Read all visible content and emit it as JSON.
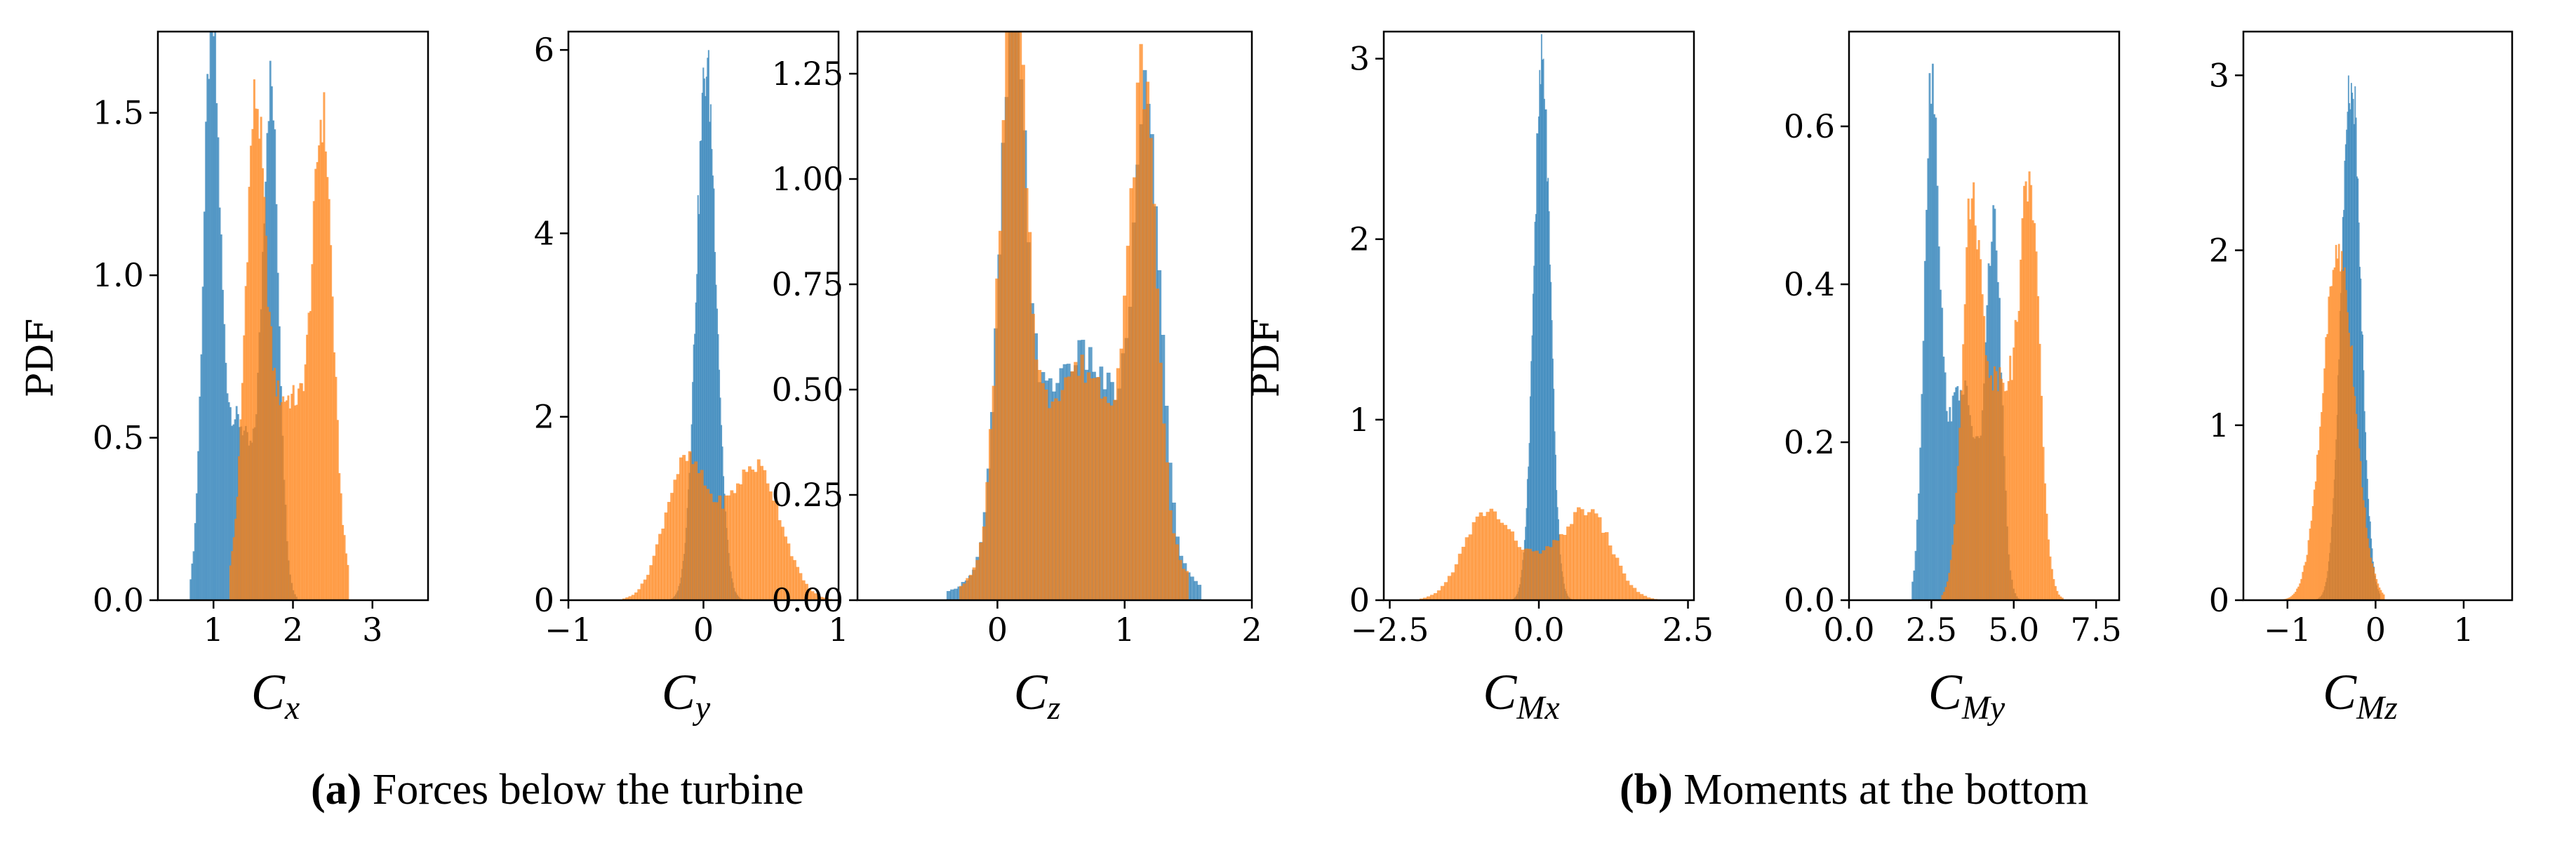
{
  "colors": {
    "blue": "#1f77b4",
    "orange": "#ff7f0e"
  },
  "captions": [
    {
      "tag": "(a)",
      "text": "Forces below the turbine"
    },
    {
      "tag": "(b)",
      "text": "Moments at the bottom"
    }
  ],
  "chart_data": [
    {
      "type": "histogram",
      "xlabel_main": "C",
      "xlabel_sub": "x",
      "ylabel": "PDF",
      "xlim": [
        0.3,
        3.7
      ],
      "ylim": [
        0,
        1.75
      ],
      "xticks": [
        1,
        2,
        3
      ],
      "xtick_labels": [
        "1",
        "2",
        "3"
      ],
      "yticks": [
        0,
        0.5,
        1,
        1.5
      ],
      "ytick_labels": [
        "0.0",
        "0.5",
        "1.0",
        "1.5"
      ],
      "series": [
        {
          "color": "blue",
          "peaks": [
            [
              0.97,
              0.1,
              1.6
            ],
            [
              1.72,
              0.1,
              1.5
            ],
            [
              1.3,
              0.22,
              0.55
            ]
          ],
          "range": [
            0.7,
            2.05
          ]
        },
        {
          "color": "orange",
          "peaks": [
            [
              1.52,
              0.12,
              1.25
            ],
            [
              2.38,
              0.12,
              1.2
            ],
            [
              1.95,
              0.35,
              0.62
            ]
          ],
          "range": [
            1.2,
            2.7
          ]
        }
      ]
    },
    {
      "type": "histogram",
      "xlabel_main": "C",
      "xlabel_sub": "y",
      "ylabel": "",
      "xlim": [
        -1,
        1
      ],
      "ylim": [
        0,
        6.2
      ],
      "xticks": [
        -1,
        0,
        1
      ],
      "xtick_labels": [
        "−1",
        "0",
        "1"
      ],
      "yticks": [
        0,
        2,
        4,
        6
      ],
      "ytick_labels": [
        "0",
        "2",
        "4",
        "6"
      ],
      "series": [
        {
          "color": "blue",
          "peaks": [
            [
              0.02,
              0.075,
              5.8
            ]
          ],
          "range": [
            -0.25,
            0.3
          ]
        },
        {
          "color": "orange",
          "peaks": [
            [
              -0.15,
              0.15,
              1.3
            ],
            [
              0.42,
              0.17,
              1.25
            ],
            [
              0.13,
              0.2,
              0.55
            ]
          ],
          "range": [
            -0.6,
            0.95
          ]
        }
      ]
    },
    {
      "type": "histogram",
      "xlabel_main": "C",
      "xlabel_sub": "z",
      "ylabel": "",
      "xlim": [
        -1.1,
        2
      ],
      "ylim": [
        0,
        1.35
      ],
      "xticks": [
        0,
        1,
        2
      ],
      "xtick_labels": [
        "0",
        "1",
        "2"
      ],
      "yticks": [
        0,
        0.25,
        0.5,
        0.75,
        1,
        1.25
      ],
      "ytick_labels": [
        "0.00",
        "0.25",
        "0.50",
        "0.75",
        "1.00",
        "1.25"
      ],
      "series": [
        {
          "color": "blue",
          "peaks": [
            [
              0.12,
              0.1,
              1.15
            ],
            [
              1.18,
              0.1,
              0.95
            ],
            [
              0.65,
              0.4,
              0.58
            ]
          ],
          "range": [
            -0.4,
            1.6
          ]
        },
        {
          "color": "orange",
          "peaks": [
            [
              0.12,
              0.1,
              1.25
            ],
            [
              1.15,
              0.1,
              1.0
            ],
            [
              0.65,
              0.4,
              0.55
            ]
          ],
          "range": [
            -0.3,
            1.5
          ]
        }
      ]
    },
    {
      "type": "histogram",
      "xlabel_main": "C",
      "xlabel_sub": "Mx",
      "ylabel": "PDF",
      "xlim": [
        -2.6,
        2.6
      ],
      "ylim": [
        0,
        3.15
      ],
      "xticks": [
        -2.5,
        0,
        2.5
      ],
      "xtick_labels": [
        "−2.5",
        "0.0",
        "2.5"
      ],
      "yticks": [
        0,
        1,
        2,
        3
      ],
      "ytick_labels": [
        "0",
        "1",
        "2",
        "3"
      ],
      "series": [
        {
          "color": "blue",
          "peaks": [
            [
              0.05,
              0.14,
              2.95
            ]
          ],
          "range": [
            -0.5,
            0.6
          ]
        },
        {
          "color": "orange",
          "peaks": [
            [
              -0.9,
              0.38,
              0.45
            ],
            [
              0.85,
              0.38,
              0.45
            ],
            [
              0.0,
              0.5,
              0.2
            ]
          ],
          "range": [
            -2.0,
            2.1
          ]
        }
      ]
    },
    {
      "type": "histogram",
      "xlabel_main": "C",
      "xlabel_sub": "My",
      "ylabel": "",
      "xlim": [
        0,
        8.2
      ],
      "ylim": [
        0,
        0.72
      ],
      "xticks": [
        0,
        2.5,
        5,
        7.5
      ],
      "xtick_labels": [
        "0.0",
        "2.5",
        "5.0",
        "7.5"
      ],
      "yticks": [
        0,
        0.2,
        0.4,
        0.6
      ],
      "ytick_labels": [
        "0.0",
        "0.2",
        "0.4",
        "0.6"
      ],
      "series": [
        {
          "color": "blue",
          "peaks": [
            [
              2.5,
              0.22,
              0.62
            ],
            [
              4.4,
              0.22,
              0.45
            ],
            [
              3.4,
              0.5,
              0.27
            ]
          ],
          "range": [
            1.9,
            5.2
          ]
        },
        {
          "color": "orange",
          "peaks": [
            [
              3.7,
              0.28,
              0.42
            ],
            [
              5.5,
              0.28,
              0.45
            ],
            [
              4.6,
              0.6,
              0.28
            ]
          ],
          "range": [
            2.8,
            6.5
          ]
        }
      ]
    },
    {
      "type": "histogram",
      "xlabel_main": "C",
      "xlabel_sub": "Mz",
      "ylabel": "",
      "xlim": [
        -1.5,
        1.55
      ],
      "ylim": [
        0,
        3.25
      ],
      "xticks": [
        -1,
        0,
        1
      ],
      "xtick_labels": [
        "−1",
        "0",
        "1"
      ],
      "yticks": [
        0,
        1,
        2,
        3
      ],
      "ytick_labels": [
        "0",
        "1",
        "2",
        "3"
      ],
      "series": [
        {
          "color": "blue",
          "peaks": [
            [
              -0.28,
              0.11,
              3.0
            ]
          ],
          "range": [
            -0.7,
            0.05
          ]
        },
        {
          "color": "orange",
          "peaks": [
            [
              -0.42,
              0.18,
              2.0
            ]
          ],
          "range": [
            -1.05,
            0.1
          ]
        }
      ]
    }
  ]
}
